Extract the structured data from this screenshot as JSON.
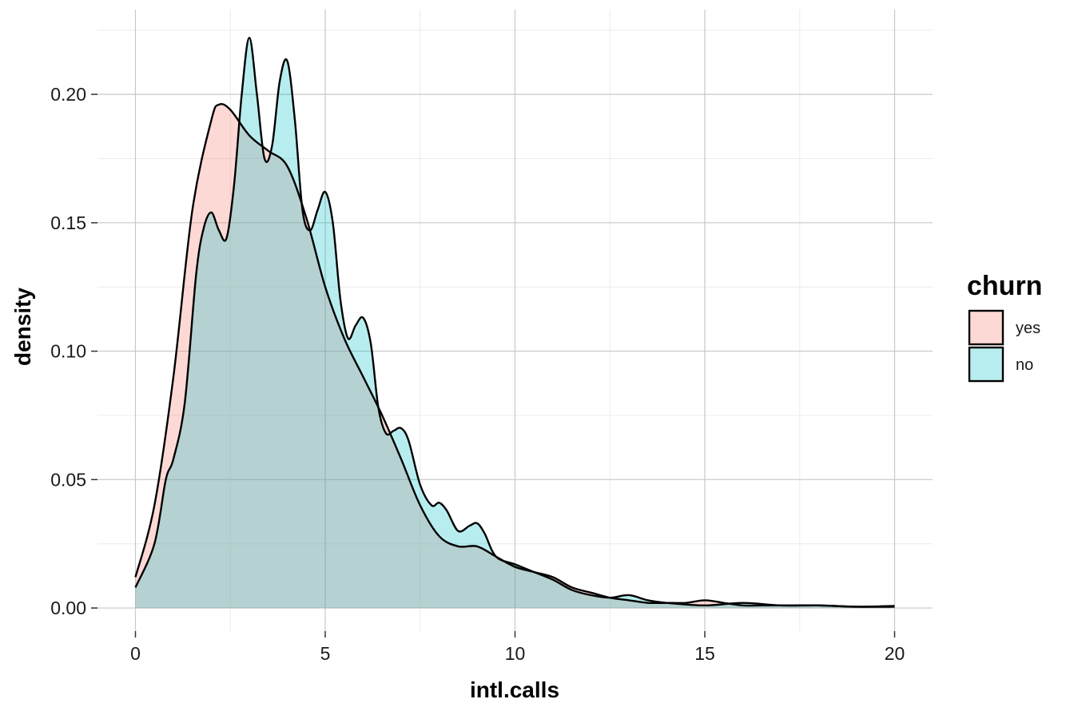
{
  "chart_data": {
    "type": "area",
    "subtype": "density",
    "title": "",
    "xlabel": "intl.calls",
    "ylabel": "density",
    "xlim": [
      -1,
      21
    ],
    "ylim": [
      -0.009,
      0.233
    ],
    "x_ticks": [
      0,
      5,
      10,
      15,
      20
    ],
    "x_tick_labels": [
      "0",
      "5",
      "10",
      "15",
      "20"
    ],
    "y_ticks": [
      0.0,
      0.05,
      0.1,
      0.15,
      0.2
    ],
    "y_tick_labels": [
      "0.00",
      "0.05",
      "0.10",
      "0.15",
      "0.20"
    ],
    "grid": true,
    "legend": {
      "title": "churn",
      "position": "right"
    },
    "series": [
      {
        "name": "yes",
        "color": "#F8766D",
        "x": [
          0,
          0.5,
          1,
          1.5,
          2,
          2.2,
          2.5,
          3,
          3.5,
          4,
          4.5,
          5,
          5.5,
          6,
          6.5,
          7,
          7.5,
          8,
          8.5,
          9,
          9.5,
          10,
          10.5,
          11,
          11.5,
          12,
          12.5,
          13,
          13.5,
          14,
          14.5,
          15,
          15.5,
          16,
          16.5,
          17,
          18,
          19,
          20
        ],
        "values": [
          0.012,
          0.04,
          0.09,
          0.155,
          0.19,
          0.196,
          0.194,
          0.184,
          0.178,
          0.172,
          0.152,
          0.125,
          0.105,
          0.09,
          0.075,
          0.058,
          0.04,
          0.028,
          0.024,
          0.024,
          0.02,
          0.016,
          0.014,
          0.012,
          0.008,
          0.006,
          0.004,
          0.003,
          0.002,
          0.002,
          0.002,
          0.003,
          0.002,
          0.001,
          0.001,
          0.001,
          0.001,
          0.0005,
          0.0005
        ]
      },
      {
        "name": "no",
        "color": "#00BFC4",
        "x": [
          0,
          0.5,
          0.8,
          1,
          1.3,
          1.6,
          1.8,
          2,
          2.2,
          2.4,
          2.6,
          2.8,
          3,
          3.2,
          3.4,
          3.6,
          3.8,
          4,
          4.2,
          4.4,
          4.6,
          4.8,
          5,
          5.2,
          5.4,
          5.6,
          5.8,
          6,
          6.2,
          6.4,
          6.6,
          6.8,
          7,
          7.2,
          7.5,
          7.8,
          8,
          8.2,
          8.5,
          8.8,
          9,
          9.2,
          9.5,
          10,
          10.5,
          11,
          11.5,
          12,
          12.5,
          13,
          13.5,
          14,
          15,
          16,
          17,
          18,
          19,
          20
        ],
        "values": [
          0.008,
          0.025,
          0.05,
          0.058,
          0.08,
          0.13,
          0.148,
          0.154,
          0.147,
          0.144,
          0.165,
          0.2,
          0.222,
          0.2,
          0.175,
          0.18,
          0.205,
          0.213,
          0.19,
          0.155,
          0.147,
          0.155,
          0.162,
          0.15,
          0.12,
          0.105,
          0.11,
          0.113,
          0.103,
          0.078,
          0.068,
          0.069,
          0.07,
          0.065,
          0.048,
          0.04,
          0.041,
          0.038,
          0.03,
          0.032,
          0.033,
          0.029,
          0.02,
          0.017,
          0.014,
          0.011,
          0.007,
          0.005,
          0.004,
          0.005,
          0.003,
          0.002,
          0.001,
          0.002,
          0.001,
          0.001,
          0.0005,
          0.0008
        ]
      }
    ],
    "fill_opacity": 0.28,
    "line_color": "#000000"
  }
}
